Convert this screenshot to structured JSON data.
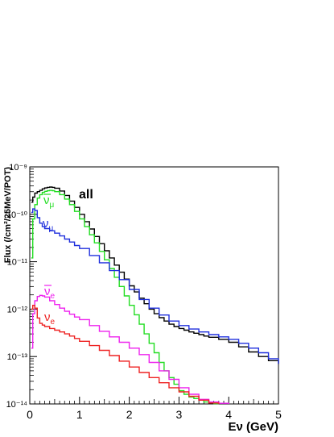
{
  "chart_data": {
    "type": "line",
    "xlabel": "Eν (GeV)",
    "ylabel": "Flux (/cm²/25MeV/POT)",
    "xlim": [
      0,
      5
    ],
    "ylim": [
      1e-14,
      1e-09
    ],
    "y_scale": "log",
    "grid": false,
    "x_ticks": [
      "0",
      "1",
      "2",
      "3",
      "4",
      "5"
    ],
    "y_ticks": [
      "10⁻¹⁴",
      "10⁻¹³",
      "10⁻¹²",
      "10⁻¹¹",
      "10⁻¹⁰",
      "10⁻⁹"
    ],
    "series": [
      {
        "name": "all",
        "color": "#000000",
        "x": [
          0.03,
          0.06,
          0.1,
          0.15,
          0.2,
          0.25,
          0.3,
          0.35,
          0.4,
          0.45,
          0.5,
          0.6,
          0.7,
          0.8,
          0.9,
          1.0,
          1.1,
          1.2,
          1.3,
          1.4,
          1.5,
          1.6,
          1.7,
          1.8,
          1.9,
          2.0,
          2.1,
          2.2,
          2.3,
          2.4,
          2.5,
          2.6,
          2.7,
          2.8,
          2.9,
          3.0,
          3.1,
          3.2,
          3.3,
          3.4,
          3.5,
          3.6,
          3.8,
          4.0,
          4.2,
          4.4,
          4.6,
          4.8,
          5.0
        ],
        "y": [
          1.8e-10,
          2.3e-10,
          2.8e-10,
          3e-10,
          3.2e-10,
          3.45e-10,
          3.6e-10,
          3.7e-10,
          3.75e-10,
          3.7e-10,
          3.55e-10,
          3.1e-10,
          2.5e-10,
          1.9e-10,
          1.4e-10,
          1e-10,
          7e-11,
          4.9e-11,
          3.4e-11,
          2.4e-11,
          1.7e-11,
          1.2e-11,
          8.5e-12,
          6e-12,
          4.3e-12,
          3.1e-12,
          2.3e-12,
          1.7e-12,
          1.3e-12,
          1e-12,
          8e-13,
          6.6e-13,
          5.6e-13,
          4.8e-13,
          4.3e-13,
          3.9e-13,
          3.6e-13,
          3.3e-13,
          3.1e-13,
          2.9e-13,
          2.7e-13,
          2.55e-13,
          2.3e-13,
          2e-13,
          1.6e-13,
          1.25e-13,
          1e-13,
          8.2e-14,
          7e-14
        ]
      },
      {
        "name": "ν̄μ",
        "color": "#22dd22",
        "x": [
          0.03,
          0.06,
          0.1,
          0.15,
          0.2,
          0.25,
          0.3,
          0.35,
          0.4,
          0.45,
          0.5,
          0.6,
          0.7,
          0.8,
          0.9,
          1.0,
          1.1,
          1.2,
          1.3,
          1.4,
          1.5,
          1.6,
          1.7,
          1.8,
          1.9,
          2.0,
          2.1,
          2.2,
          2.3,
          2.4,
          2.5,
          2.6,
          2.7,
          2.8,
          2.9,
          3.0,
          3.1,
          3.2,
          3.3,
          3.4,
          3.5,
          3.6,
          3.7,
          3.8
        ],
        "y": [
          1.2e-11,
          8e-11,
          1.6e-10,
          2.2e-10,
          2.6e-10,
          2.9e-10,
          3.05e-10,
          3.15e-10,
          3.2e-10,
          3.15e-10,
          3e-10,
          2.6e-10,
          2.1e-10,
          1.6e-10,
          1.15e-10,
          8e-11,
          5.5e-11,
          3.7e-11,
          2.5e-11,
          1.65e-11,
          1.1e-11,
          7.2e-12,
          4.7e-12,
          3e-12,
          1.9e-12,
          1.2e-12,
          7.6e-13,
          4.8e-13,
          3e-13,
          1.9e-13,
          1.2e-13,
          7.5e-14,
          5e-14,
          3.6e-14,
          2.6e-14,
          1.9e-14,
          1.6e-14,
          1.4e-14,
          1.3e-14,
          1.2e-14,
          1.1e-14,
          1.05e-14,
          1.02e-14,
          1e-14
        ]
      },
      {
        "name": "νμ",
        "color": "#1f2fdd",
        "x": [
          0.03,
          0.06,
          0.1,
          0.15,
          0.2,
          0.25,
          0.3,
          0.4,
          0.5,
          0.6,
          0.7,
          0.8,
          0.9,
          1.0,
          1.2,
          1.4,
          1.6,
          1.8,
          2.0,
          2.2,
          2.4,
          2.6,
          2.8,
          3.0,
          3.2,
          3.4,
          3.6,
          3.8,
          4.0,
          4.2,
          4.4,
          4.6,
          4.8,
          5.0
        ],
        "y": [
          1.1e-10,
          1.3e-10,
          1.2e-10,
          8.5e-11,
          6.5e-11,
          5.5e-11,
          5e-11,
          4.5e-11,
          4e-11,
          3.5e-11,
          3e-11,
          2.6e-11,
          2.2e-11,
          1.9e-11,
          1.35e-11,
          9.5e-12,
          6.5e-12,
          4.2e-12,
          2.6e-12,
          1.6e-12,
          1.05e-12,
          7.5e-13,
          5.6e-13,
          4.5e-13,
          3.8e-13,
          3.3e-13,
          2.9e-13,
          2.6e-13,
          2.3e-13,
          1.9e-13,
          1.5e-13,
          1.2e-13,
          9e-14,
          7e-14
        ]
      },
      {
        "name": "ν̄e",
        "color": "#ee22ee",
        "x": [
          0.03,
          0.06,
          0.1,
          0.15,
          0.2,
          0.25,
          0.3,
          0.4,
          0.5,
          0.6,
          0.7,
          0.8,
          0.9,
          1.0,
          1.2,
          1.4,
          1.6,
          1.8,
          2.0,
          2.2,
          2.4,
          2.6,
          2.8,
          3.0,
          3.2,
          3.4,
          3.6,
          3.8,
          4.0
        ],
        "y": [
          1.5e-13,
          8e-13,
          1.5e-12,
          1.85e-12,
          1.95e-12,
          1.9e-12,
          1.8e-12,
          1.5e-12,
          1.25e-12,
          1.05e-12,
          9e-13,
          7.8e-13,
          6.8e-13,
          6e-13,
          4.5e-13,
          3.4e-13,
          2.6e-13,
          2e-13,
          1.5e-13,
          1.1e-13,
          7.5e-14,
          5e-14,
          3.3e-14,
          2.2e-14,
          1.6e-14,
          1.25e-14,
          1.1e-14,
          1.03e-14,
          1e-14
        ]
      },
      {
        "name": "νe",
        "color": "#ee2222",
        "x": [
          0.03,
          0.06,
          0.1,
          0.15,
          0.2,
          0.25,
          0.3,
          0.4,
          0.5,
          0.6,
          0.7,
          0.8,
          0.9,
          1.0,
          1.2,
          1.4,
          1.6,
          1.8,
          2.0,
          2.2,
          2.4,
          2.6,
          2.8,
          3.0,
          3.2,
          3.4,
          3.6,
          3.8
        ],
        "y": [
          1e-12,
          1.2e-12,
          1.05e-12,
          6.5e-13,
          5e-13,
          4.6e-13,
          4.3e-13,
          3.9e-13,
          3.6e-13,
          3.3e-13,
          3e-13,
          2.7e-13,
          2.4e-13,
          2.1e-13,
          1.7e-13,
          1.35e-13,
          1.05e-13,
          8e-14,
          6e-14,
          4.6e-14,
          3.6e-14,
          2.8e-14,
          2.2e-14,
          1.8e-14,
          1.45e-14,
          1.2e-14,
          1.05e-14,
          1e-14
        ]
      }
    ],
    "labels": [
      {
        "text": "all",
        "series": "all",
        "color": "#000000"
      },
      {
        "text": "ν̄μ",
        "base": "ν",
        "sub": "μ",
        "bar": true,
        "series": "ν̄μ",
        "color": "#22dd22"
      },
      {
        "text": "νμ",
        "base": "ν",
        "sub": "μ",
        "bar": false,
        "series": "νμ",
        "color": "#1f2fdd"
      },
      {
        "text": "ν̄e",
        "base": "ν",
        "sub": "e",
        "bar": true,
        "series": "ν̄e",
        "color": "#ee22ee"
      },
      {
        "text": "νe",
        "base": "ν",
        "sub": "e",
        "bar": false,
        "series": "νe",
        "color": "#ee2222"
      }
    ]
  }
}
